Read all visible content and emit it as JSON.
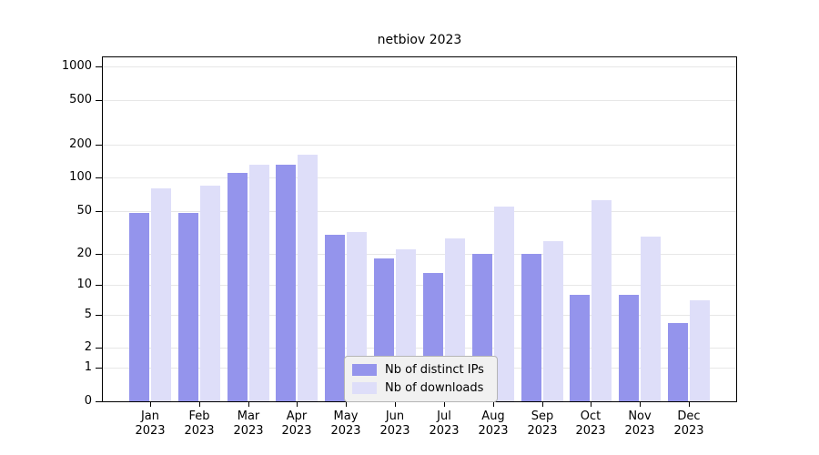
{
  "chart_data": {
    "type": "bar",
    "title": "netbiov 2023",
    "categories": [
      "Jan",
      "Feb",
      "Mar",
      "Apr",
      "May",
      "Jun",
      "Jul",
      "Aug",
      "Sep",
      "Oct",
      "Nov",
      "Dec"
    ],
    "category_year": "2023",
    "series": [
      {
        "name": "Nb of distinct IPs",
        "color": "#9494ec",
        "values": [
          48,
          48,
          110,
          130,
          30,
          18,
          13,
          20,
          20,
          8,
          8,
          4
        ]
      },
      {
        "name": "Nb of downloads",
        "color": "#dedef9",
        "values": [
          80,
          85,
          132,
          160,
          32,
          22,
          28,
          55,
          26,
          62,
          29,
          7
        ]
      }
    ],
    "yticks": [
      0,
      1,
      2,
      5,
      10,
      20,
      50,
      100,
      200,
      500,
      1000
    ],
    "scale": "log10(1+x)",
    "ylim": [
      0,
      1200
    ],
    "xlabel": "",
    "ylabel": "",
    "grid": true,
    "legend_position": "bottom-center"
  }
}
